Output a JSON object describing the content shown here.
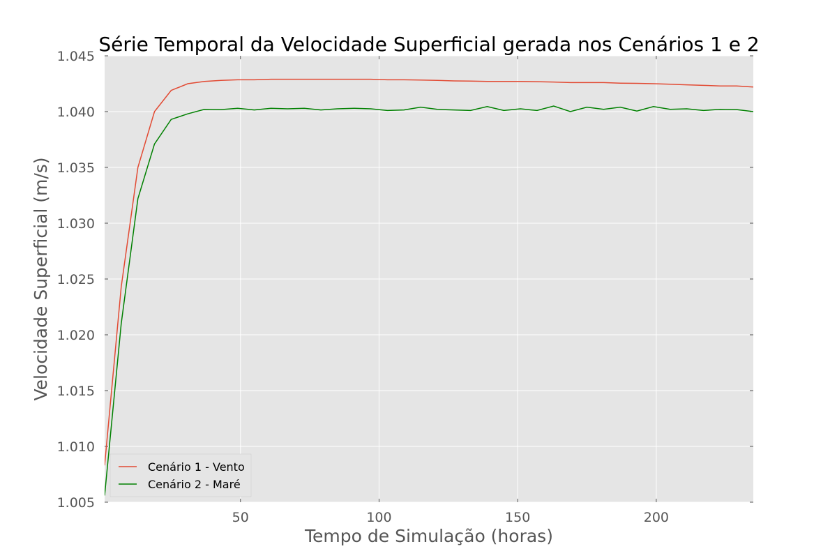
{
  "chart_data": {
    "type": "line",
    "title": "Série Temporal da Velocidade Superficial gerada nos Cenários 1 e 2",
    "xlabel": "Tempo de Simulação (horas)",
    "ylabel": "Velocidade Superficial (m/s)",
    "xlim": [
      1,
      235
    ],
    "ylim": [
      1.005,
      1.045
    ],
    "xticks": [
      50,
      100,
      150,
      200
    ],
    "xtick_labels": [
      "50",
      "100",
      "150",
      "200"
    ],
    "yticks": [
      1.005,
      1.01,
      1.015,
      1.02,
      1.025,
      1.03,
      1.035,
      1.04,
      1.045
    ],
    "ytick_labels": [
      "1.005",
      "1.010",
      "1.015",
      "1.020",
      "1.025",
      "1.030",
      "1.035",
      "1.040",
      "1.045"
    ],
    "grid": true,
    "legend_position": "lower-left",
    "background": "#e5e5e5",
    "series": [
      {
        "name": "Cenário 1 - Vento",
        "color": "#e24a33",
        "x": [
          1,
          7,
          13,
          19,
          25,
          31,
          37,
          43,
          49,
          55,
          61,
          67,
          73,
          79,
          85,
          91,
          97,
          103,
          109,
          115,
          121,
          127,
          133,
          139,
          145,
          151,
          157,
          163,
          169,
          175,
          181,
          187,
          193,
          199,
          205,
          211,
          217,
          223,
          229,
          235
        ],
        "values": [
          1.0083,
          1.0243,
          1.035,
          1.04,
          1.0419,
          1.0425,
          1.0427,
          1.0428,
          1.04285,
          1.04285,
          1.0429,
          1.0429,
          1.0429,
          1.0429,
          1.0429,
          1.0429,
          1.0429,
          1.04285,
          1.04285,
          1.04283,
          1.0428,
          1.04275,
          1.04273,
          1.0427,
          1.0427,
          1.0427,
          1.04268,
          1.04265,
          1.0426,
          1.0426,
          1.0426,
          1.04255,
          1.04253,
          1.0425,
          1.04245,
          1.0424,
          1.04235,
          1.0423,
          1.0423,
          1.0422
        ]
      },
      {
        "name": "Cenário 2 - Maré",
        "color": "#008000",
        "x": [
          1,
          7,
          13,
          19,
          25,
          31,
          37,
          43,
          49,
          55,
          61,
          67,
          73,
          79,
          85,
          91,
          97,
          103,
          109,
          115,
          121,
          127,
          133,
          139,
          145,
          151,
          157,
          163,
          169,
          175,
          181,
          187,
          193,
          199,
          205,
          211,
          217,
          223,
          229,
          235
        ],
        "values": [
          1.0056,
          1.021,
          1.0322,
          1.0371,
          1.0393,
          1.0398,
          1.0402,
          1.04018,
          1.0403,
          1.04015,
          1.0403,
          1.04025,
          1.0403,
          1.04015,
          1.04025,
          1.0403,
          1.04025,
          1.0401,
          1.04015,
          1.0404,
          1.0402,
          1.04015,
          1.0401,
          1.04045,
          1.0401,
          1.04025,
          1.0401,
          1.0405,
          1.04,
          1.0404,
          1.0402,
          1.0404,
          1.04005,
          1.04045,
          1.0402,
          1.04025,
          1.0401,
          1.0402,
          1.04018,
          1.04
        ]
      }
    ]
  }
}
